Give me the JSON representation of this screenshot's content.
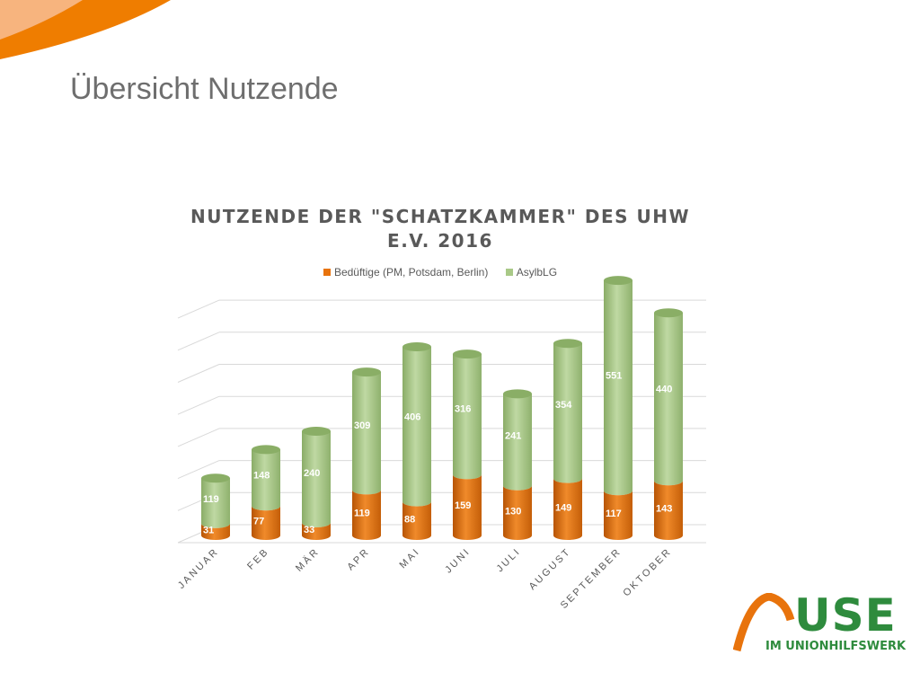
{
  "slide": {
    "title": "Übersicht Nutzende"
  },
  "colors": {
    "orange": "#e8730c",
    "green": "#a9c987",
    "accent_orange": "#ef7d00",
    "logo_green": "#2e8b3d"
  },
  "logo": {
    "main": "USE",
    "sub": "IM UNIONHILFSWERK",
    "icon": "house-roof-arc-icon"
  },
  "chart_data": {
    "type": "bar",
    "stacked": true,
    "title_lines": [
      "NUTZENDE DER \"SCHATZKAMMER\" DES UHW",
      "E.V. 2016"
    ],
    "categories": [
      "JANUAR",
      "FEB",
      "MÄR",
      "APR",
      "MAI",
      "JUNI",
      "JULI",
      "AUGUST",
      "SEPTEMBER",
      "OKTOBER"
    ],
    "series": [
      {
        "name": "Bedüftige (PM, Potsdam, Berlin)",
        "color": "#e8730c",
        "values": [
          31,
          77,
          33,
          119,
          88,
          159,
          130,
          149,
          117,
          143
        ]
      },
      {
        "name": "AsylbLG",
        "color": "#a9c987",
        "values": [
          119,
          148,
          240,
          309,
          406,
          316,
          241,
          354,
          551,
          440
        ]
      }
    ],
    "ylim": [
      0,
      700
    ],
    "grid": true,
    "legend": "top",
    "xlabel": "",
    "ylabel": ""
  }
}
